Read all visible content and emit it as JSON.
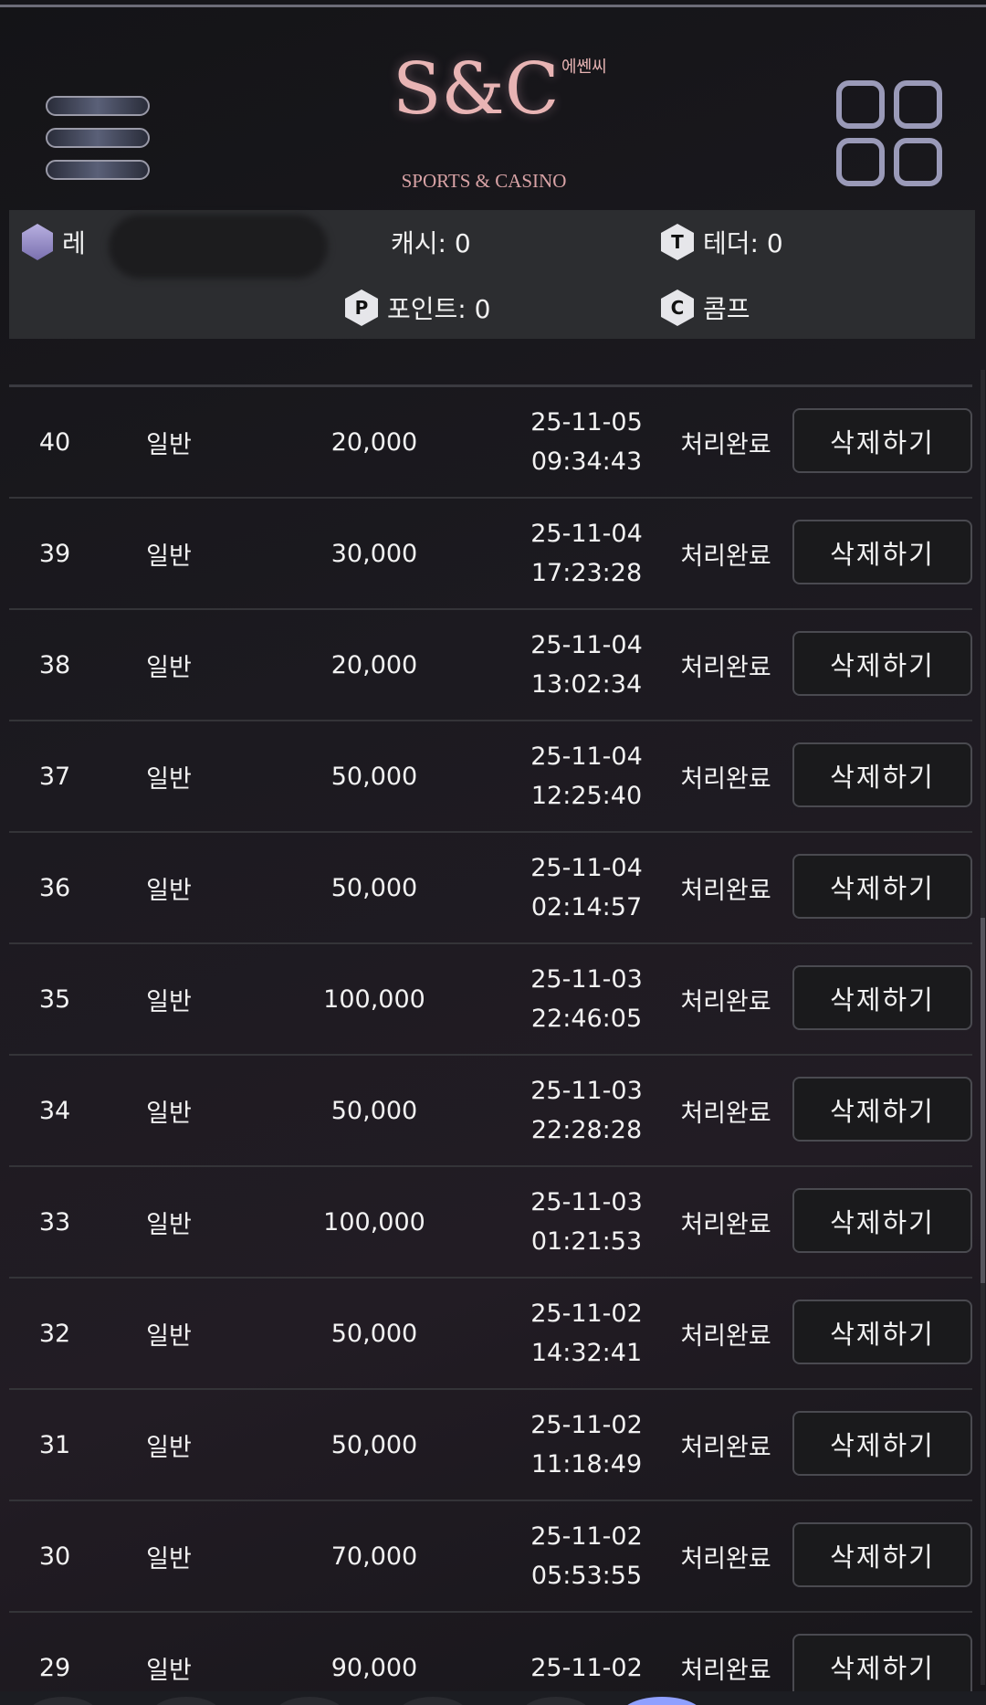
{
  "header": {
    "logo_main": "S&C",
    "logo_korean": "에쎈씨",
    "logo_sub": "SPORTS & CASINO"
  },
  "info": {
    "level_label": "레",
    "cash": "캐시: 0",
    "tether": "테더: 0",
    "point": "포인트: 0",
    "comp": "콤프",
    "icons": {
      "tether": "T",
      "point": "P",
      "comp": "C"
    }
  },
  "rows": [
    {
      "no": "40",
      "type": "일반",
      "amount": "20,000",
      "date": "25-11-05",
      "time": "09:34:43",
      "status": "처리완료",
      "action": "삭제하기"
    },
    {
      "no": "39",
      "type": "일반",
      "amount": "30,000",
      "date": "25-11-04",
      "time": "17:23:28",
      "status": "처리완료",
      "action": "삭제하기"
    },
    {
      "no": "38",
      "type": "일반",
      "amount": "20,000",
      "date": "25-11-04",
      "time": "13:02:34",
      "status": "처리완료",
      "action": "삭제하기"
    },
    {
      "no": "37",
      "type": "일반",
      "amount": "50,000",
      "date": "25-11-04",
      "time": "12:25:40",
      "status": "처리완료",
      "action": "삭제하기"
    },
    {
      "no": "36",
      "type": "일반",
      "amount": "50,000",
      "date": "25-11-04",
      "time": "02:14:57",
      "status": "처리완료",
      "action": "삭제하기"
    },
    {
      "no": "35",
      "type": "일반",
      "amount": "100,000",
      "date": "25-11-03",
      "time": "22:46:05",
      "status": "처리완료",
      "action": "삭제하기"
    },
    {
      "no": "34",
      "type": "일반",
      "amount": "50,000",
      "date": "25-11-03",
      "time": "22:28:28",
      "status": "처리완료",
      "action": "삭제하기"
    },
    {
      "no": "33",
      "type": "일반",
      "amount": "100,000",
      "date": "25-11-03",
      "time": "01:21:53",
      "status": "처리완료",
      "action": "삭제하기"
    },
    {
      "no": "32",
      "type": "일반",
      "amount": "50,000",
      "date": "25-11-02",
      "time": "14:32:41",
      "status": "처리완료",
      "action": "삭제하기"
    },
    {
      "no": "31",
      "type": "일반",
      "amount": "50,000",
      "date": "25-11-02",
      "time": "11:18:49",
      "status": "처리완료",
      "action": "삭제하기"
    },
    {
      "no": "30",
      "type": "일반",
      "amount": "70,000",
      "date": "25-11-02",
      "time": "05:53:55",
      "status": "처리완료",
      "action": "삭제하기"
    },
    {
      "no": "29",
      "type": "일반",
      "amount": "90,000",
      "date": "25-11-02",
      "status": "처리완료",
      "action": "삭제하기"
    }
  ]
}
